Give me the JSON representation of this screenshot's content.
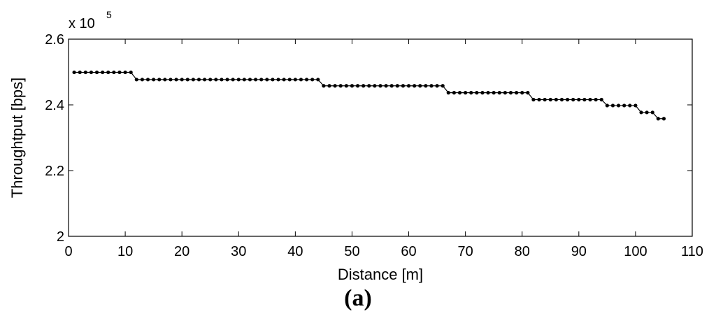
{
  "caption": "(a)",
  "chart_data": {
    "type": "line",
    "xlabel": "Distance [m]",
    "ylabel": "Throughtput [bps]",
    "y_multiplier_base": "x 10",
    "y_multiplier_exp": "5",
    "xlim": [
      0,
      110
    ],
    "ylim": [
      2.0,
      2.6
    ],
    "xticks": [
      "0",
      "10",
      "20",
      "30",
      "40",
      "50",
      "60",
      "70",
      "80",
      "90",
      "100",
      "110"
    ],
    "yticks": [
      "2",
      "2.2",
      "2.4",
      "2.6"
    ],
    "grid": false,
    "series": [
      {
        "marker": "filled-circle",
        "color": "#000000",
        "segments": [
          {
            "x_start": 1,
            "x_end": 11,
            "y": 2.499
          },
          {
            "x_start": 12,
            "x_end": 44,
            "y": 2.477
          },
          {
            "x_start": 45,
            "x_end": 66,
            "y": 2.458
          },
          {
            "x_start": 67,
            "x_end": 81,
            "y": 2.437
          },
          {
            "x_start": 82,
            "x_end": 94,
            "y": 2.416
          },
          {
            "x_start": 95,
            "x_end": 100,
            "y": 2.398
          },
          {
            "x_start": 101,
            "x_end": 103,
            "y": 2.377
          },
          {
            "x_start": 104,
            "x_end": 105,
            "y": 2.358
          }
        ]
      }
    ]
  }
}
